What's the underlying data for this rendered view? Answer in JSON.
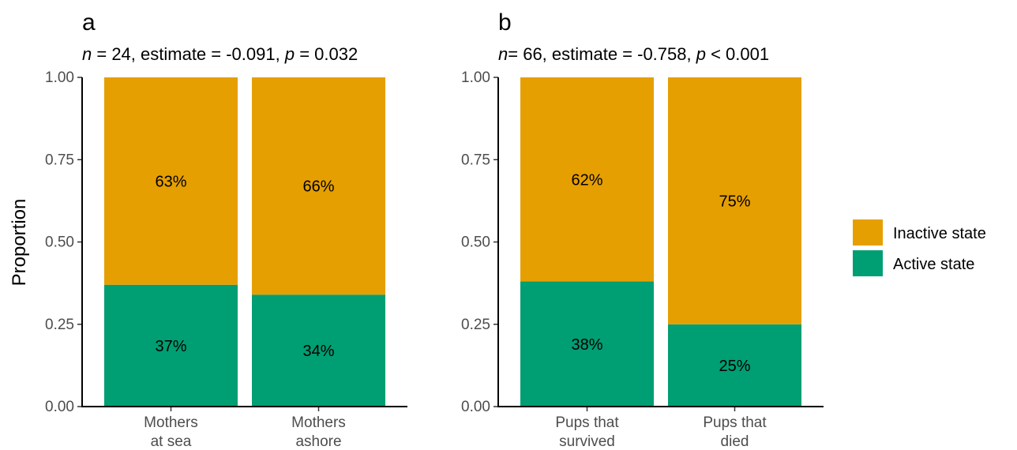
{
  "chart_data": [
    {
      "type": "bar",
      "stacked": true,
      "panel": "a",
      "subtitle": {
        "parts": [
          {
            "text": "n",
            "italic": true
          },
          {
            "text": " = 24, estimate = -0.091, ",
            "italic": false
          },
          {
            "text": "p",
            "italic": true
          },
          {
            "text": " = 0.032",
            "italic": false
          }
        ]
      },
      "ylabel": "Proportion",
      "ylim": [
        0,
        1
      ],
      "yticks": [
        "0.00",
        "0.25",
        "0.50",
        "0.75",
        "1.00"
      ],
      "categories": [
        [
          "Mothers",
          "at sea"
        ],
        [
          "Mothers",
          "ashore"
        ]
      ],
      "series": [
        {
          "name": "Active state",
          "color": "#009E73",
          "values": [
            0.37,
            0.34
          ],
          "labels": [
            "37%",
            "34%"
          ]
        },
        {
          "name": "Inactive state",
          "color": "#E69F00",
          "values": [
            0.63,
            0.66
          ],
          "labels": [
            "63%",
            "66%"
          ]
        }
      ]
    },
    {
      "type": "bar",
      "stacked": true,
      "panel": "b",
      "subtitle": {
        "parts": [
          {
            "text": "n",
            "italic": true
          },
          {
            "text": "= 66, estimate = -0.758, ",
            "italic": false
          },
          {
            "text": "p",
            "italic": true
          },
          {
            "text": " < 0.001",
            "italic": false
          }
        ]
      },
      "ylabel": "",
      "ylim": [
        0,
        1
      ],
      "yticks": [
        "0.00",
        "0.25",
        "0.50",
        "0.75",
        "1.00"
      ],
      "categories": [
        [
          "Pups that",
          "survived"
        ],
        [
          "Pups that",
          "died"
        ]
      ],
      "series": [
        {
          "name": "Active state",
          "color": "#009E73",
          "values": [
            0.38,
            0.25
          ],
          "labels": [
            "38%",
            "25%"
          ]
        },
        {
          "name": "Inactive state",
          "color": "#E69F00",
          "values": [
            0.62,
            0.75
          ],
          "labels": [
            "62%",
            "75%"
          ]
        }
      ]
    }
  ],
  "legend": {
    "position": "right",
    "items": [
      {
        "label": "Inactive state",
        "color": "#E69F00"
      },
      {
        "label": "Active state",
        "color": "#009E73"
      }
    ]
  }
}
